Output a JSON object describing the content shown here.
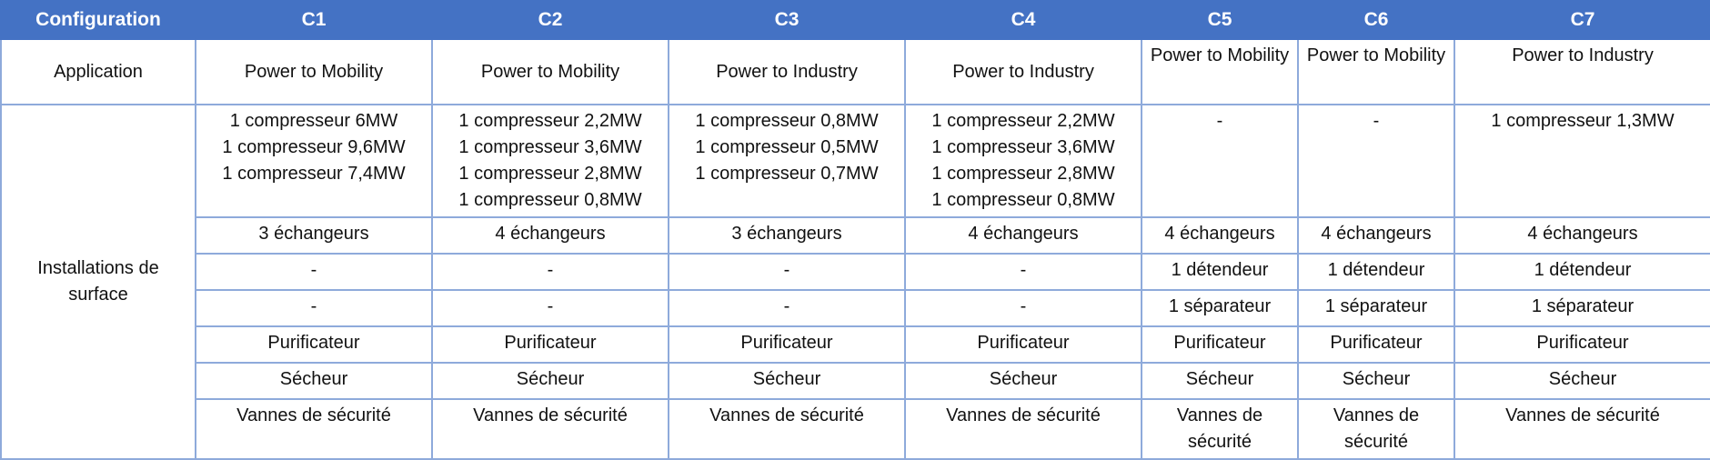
{
  "table": {
    "header": [
      "Configuration",
      "C1",
      "C2",
      "C3",
      "C4",
      "C5",
      "C6",
      "C7"
    ],
    "application": {
      "label": "Application",
      "values": [
        "Power to Mobility",
        "Power to Mobility",
        "Power to Industry",
        "Power to Industry",
        "Power to Mobility",
        "Power to Mobility",
        "Power to Industry"
      ]
    },
    "surface_label": "Installations de surface",
    "compressors": [
      [
        "1 compresseur 6MW",
        "1 compresseur 9,6MW",
        "1 compresseur 7,4MW"
      ],
      [
        "1 compresseur 2,2MW",
        "1 compresseur 3,6MW",
        "1 compresseur 2,8MW",
        "1 compresseur 0,8MW"
      ],
      [
        "1 compresseur 0,8MW",
        "1 compresseur 0,5MW",
        "1 compresseur 0,7MW"
      ],
      [
        "1 compresseur 2,2MW",
        "1 compresseur 3,6MW",
        "1 compresseur 2,8MW",
        "1 compresseur 0,8MW"
      ],
      [
        "-"
      ],
      [
        "-"
      ],
      [
        "1 compresseur 1,3MW"
      ]
    ],
    "rows": [
      [
        "3 échangeurs",
        "4 échangeurs",
        "3 échangeurs",
        "4 échangeurs",
        "4 échangeurs",
        "4 échangeurs",
        "4 échangeurs"
      ],
      [
        "-",
        "-",
        "-",
        "-",
        "1 détendeur",
        "1 détendeur",
        "1 détendeur"
      ],
      [
        "-",
        "-",
        "-",
        "-",
        "1 séparateur",
        "1 séparateur",
        "1 séparateur"
      ],
      [
        "Purificateur",
        "Purificateur",
        "Purificateur",
        "Purificateur",
        "Purificateur",
        "Purificateur",
        "Purificateur"
      ],
      [
        "Sécheur",
        "Sécheur",
        "Sécheur",
        "Sécheur",
        "Sécheur",
        "Sécheur",
        "Sécheur"
      ],
      [
        "Vannes de sécurité",
        "Vannes de sécurité",
        "Vannes de sécurité",
        "Vannes de sécurité",
        "Vannes de sécurité",
        "Vannes de sécurité",
        "Vannes de sécurité"
      ]
    ]
  },
  "colors": {
    "header_bg": "#4472c4",
    "header_text": "#ffffff",
    "border": "#8eaadb"
  }
}
